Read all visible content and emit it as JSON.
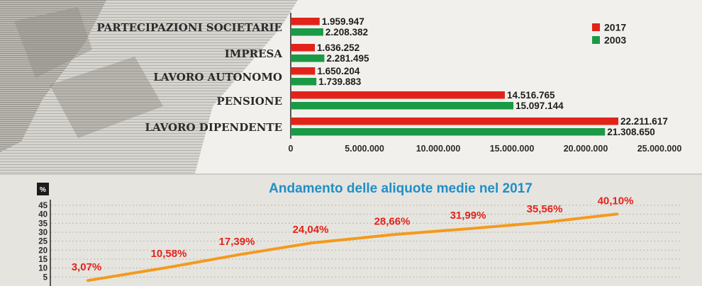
{
  "chart_data": [
    {
      "type": "bar",
      "orientation": "horizontal",
      "categories": [
        "PARTECIPAZIONI SOCIETARIE",
        "IMPRESA",
        "LAVORO AUTONOMO",
        "PENSIONE",
        "LAVORO DIPENDENTE"
      ],
      "series": [
        {
          "name": "2017",
          "color": "#e2231a",
          "values": [
            1959947,
            1636252,
            1650204,
            14516765,
            22211617
          ],
          "labels": [
            "1.959.947",
            "1.636.252",
            "1.650.204",
            "14.516.765",
            "22.211.617"
          ]
        },
        {
          "name": "2003",
          "color": "#1a9a45",
          "values": [
            2208382,
            2281495,
            1739883,
            15097144,
            21308650
          ],
          "labels": [
            "2.208.382",
            "2.281.495",
            "1.739.883",
            "15.097.144",
            "21.308.650"
          ]
        }
      ],
      "xlim": [
        0,
        25000000
      ],
      "xticks": [
        0,
        5000000,
        10000000,
        15000000,
        20000000,
        25000000
      ],
      "xtick_labels": [
        "0",
        "5.000.000",
        "10.000.000",
        "15.000.000",
        "20.000.000",
        "25.000.000"
      ],
      "legend": "top-right",
      "grid": false
    },
    {
      "type": "line",
      "title": "Andamento delle aliquote medie nel 2017",
      "ylabel": "%",
      "ylim": [
        0,
        45
      ],
      "yticks": [
        5,
        10,
        15,
        20,
        25,
        30,
        35,
        40,
        45
      ],
      "color": "#f39a1e",
      "values": [
        3.07,
        10.58,
        17.39,
        24.04,
        28.66,
        31.99,
        35.56,
        40.1
      ],
      "labels": [
        "3,07%",
        "10,58%",
        "17,39%",
        "24,04%",
        "28,66%",
        "31,99%",
        "35,56%",
        "40,10%"
      ],
      "grid": true
    }
  ]
}
